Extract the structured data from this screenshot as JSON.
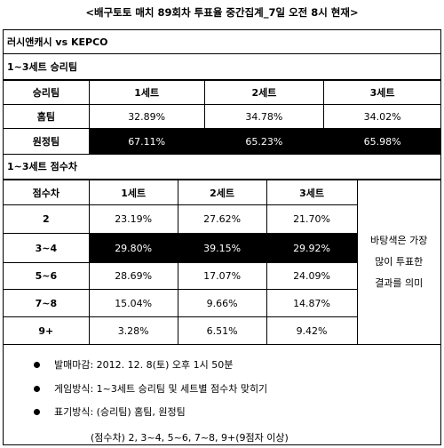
{
  "title": "<배구토토 매치 89회차 투표율 중간집계_7일 오전 8시 현재>",
  "match": "러시앤캐시 vs KEPCO",
  "section1": {
    "title": "1~3세트 승리팀",
    "header": [
      "승리팀",
      "1세트",
      "2세트",
      "3세트"
    ],
    "rows": [
      [
        "홈팀",
        "32.89%",
        "34.78%",
        "34.02%"
      ],
      [
        "원정팀",
        "67.11%",
        "65.23%",
        "65.98%"
      ]
    ]
  },
  "section2": {
    "title": "1~3세트 점수차",
    "header": [
      "점수차",
      "1세트",
      "2세트",
      "3세트"
    ],
    "rows": [
      [
        "2",
        "23.19%",
        "27.62%",
        "21.70%"
      ],
      [
        "3~4",
        "29.80%",
        "39.15%",
        "29.92%"
      ],
      [
        "5~6",
        "28.69%",
        "17.07%",
        "24.09%"
      ],
      [
        "7~8",
        "15.04%",
        "9.66%",
        "14.87%"
      ],
      [
        "9+",
        "3.28%",
        "6.51%",
        "9.42%"
      ]
    ],
    "note": [
      "바탕색은 가장",
      "많이 투표한",
      "결과를 의미"
    ]
  },
  "notes": [
    "발매마감: 2012. 12. 8(토) 오후 1시 50분",
    "게임방식: 1~3세트 승리팀 및 세트별 점수차 맞히기",
    "표기방식: (승리팀) 홈팀, 원정팀"
  ],
  "footnote": "(점수차) 2, 3~4, 5~6, 7~8, 9+(9점자 이상)"
}
